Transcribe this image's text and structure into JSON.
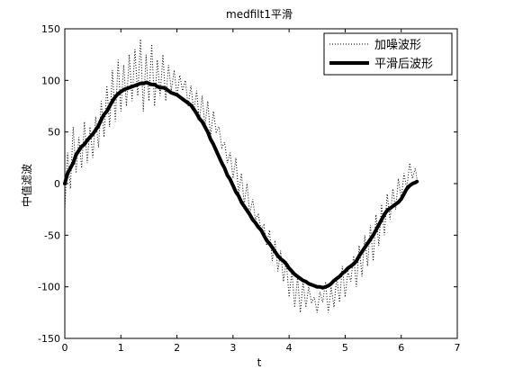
{
  "chart_data": {
    "type": "line",
    "title": "medfilt1平滑",
    "xlabel": "t",
    "ylabel": "中值滤波",
    "xlim": [
      0,
      7
    ],
    "ylim": [
      -150,
      150
    ],
    "xticks": [
      "0",
      "1",
      "2",
      "3",
      "4",
      "5",
      "6",
      "7"
    ],
    "yticks": [
      "150",
      "100",
      "50",
      "0",
      "-50",
      "-100",
      "-150"
    ],
    "grid": false,
    "legend_position": "top-right",
    "series": [
      {
        "name": "加噪波形",
        "style": "dotted",
        "color": "#000000",
        "x": [
          0,
          0.05,
          0.1,
          0.15,
          0.2,
          0.25,
          0.3,
          0.35,
          0.4,
          0.45,
          0.5,
          0.55,
          0.6,
          0.65,
          0.7,
          0.75,
          0.8,
          0.85,
          0.9,
          0.95,
          1.0,
          1.05,
          1.1,
          1.15,
          1.2,
          1.25,
          1.3,
          1.35,
          1.4,
          1.45,
          1.5,
          1.55,
          1.6,
          1.65,
          1.7,
          1.75,
          1.8,
          1.85,
          1.9,
          1.95,
          2.0,
          2.05,
          2.1,
          2.15,
          2.2,
          2.25,
          2.3,
          2.35,
          2.4,
          2.45,
          2.5,
          2.55,
          2.6,
          2.65,
          2.7,
          2.75,
          2.8,
          2.85,
          2.9,
          2.95,
          3.0,
          3.05,
          3.1,
          3.15,
          3.2,
          3.25,
          3.3,
          3.35,
          3.4,
          3.45,
          3.5,
          3.55,
          3.6,
          3.65,
          3.7,
          3.75,
          3.8,
          3.85,
          3.9,
          3.95,
          4.0,
          4.05,
          4.1,
          4.15,
          4.2,
          4.25,
          4.3,
          4.35,
          4.4,
          4.45,
          4.5,
          4.55,
          4.6,
          4.65,
          4.7,
          4.75,
          4.8,
          4.85,
          4.9,
          4.95,
          5.0,
          5.05,
          5.1,
          5.15,
          5.2,
          5.25,
          5.3,
          5.35,
          5.4,
          5.45,
          5.5,
          5.55,
          5.6,
          5.65,
          5.7,
          5.75,
          5.8,
          5.85,
          5.9,
          5.95,
          6.0,
          6.05,
          6.1,
          6.15,
          6.2,
          6.25,
          6.28
        ],
        "values": [
          -25,
          30,
          -5,
          55,
          10,
          45,
          15,
          60,
          20,
          55,
          25,
          65,
          35,
          80,
          45,
          95,
          55,
          110,
          60,
          120,
          70,
          115,
          75,
          125,
          80,
          130,
          85,
          140,
          70,
          125,
          80,
          135,
          75,
          120,
          85,
          125,
          80,
          115,
          90,
          110,
          85,
          105,
          90,
          100,
          75,
          95,
          70,
          90,
          60,
          85,
          55,
          80,
          45,
          70,
          50,
          55,
          35,
          40,
          20,
          30,
          5,
          25,
          -10,
          10,
          -20,
          0,
          -30,
          -15,
          -35,
          -30,
          -45,
          -40,
          -60,
          -45,
          -75,
          -55,
          -85,
          -65,
          -95,
          -75,
          -110,
          -85,
          -120,
          -90,
          -125,
          -95,
          -120,
          -100,
          -115,
          -110,
          -125,
          -105,
          -115,
          -95,
          -125,
          -100,
          -120,
          -90,
          -115,
          -80,
          -110,
          -85,
          -95,
          -70,
          -100,
          -60,
          -90,
          -50,
          -80,
          -40,
          -75,
          -30,
          -60,
          -20,
          -50,
          -10,
          -35,
          -5,
          -25,
          5,
          -15,
          10,
          -5,
          20,
          5,
          15,
          5
        ]
      },
      {
        "name": "平滑后波形",
        "style": "solid-thick",
        "color": "#000000",
        "x": [
          0,
          0.05,
          0.1,
          0.15,
          0.2,
          0.25,
          0.3,
          0.35,
          0.4,
          0.45,
          0.5,
          0.55,
          0.6,
          0.65,
          0.7,
          0.75,
          0.8,
          0.85,
          0.9,
          0.95,
          1.0,
          1.05,
          1.1,
          1.15,
          1.2,
          1.25,
          1.3,
          1.35,
          1.4,
          1.45,
          1.5,
          1.55,
          1.6,
          1.65,
          1.7,
          1.75,
          1.8,
          1.85,
          1.9,
          1.95,
          2.0,
          2.05,
          2.1,
          2.15,
          2.2,
          2.25,
          2.3,
          2.35,
          2.4,
          2.45,
          2.5,
          2.55,
          2.6,
          2.65,
          2.7,
          2.75,
          2.8,
          2.85,
          2.9,
          2.95,
          3.0,
          3.05,
          3.1,
          3.15,
          3.2,
          3.25,
          3.3,
          3.35,
          3.4,
          3.45,
          3.5,
          3.55,
          3.6,
          3.65,
          3.7,
          3.75,
          3.8,
          3.85,
          3.9,
          3.95,
          4.0,
          4.05,
          4.1,
          4.15,
          4.2,
          4.25,
          4.3,
          4.35,
          4.4,
          4.45,
          4.5,
          4.55,
          4.6,
          4.65,
          4.7,
          4.75,
          4.8,
          4.85,
          4.9,
          4.95,
          5.0,
          5.05,
          5.1,
          5.15,
          5.2,
          5.25,
          5.3,
          5.35,
          5.4,
          5.45,
          5.5,
          5.55,
          5.6,
          5.65,
          5.7,
          5.75,
          5.8,
          5.85,
          5.9,
          5.95,
          6.0,
          6.05,
          6.1,
          6.15,
          6.2,
          6.25,
          6.28
        ],
        "values": [
          0,
          10,
          15,
          20,
          28,
          32,
          36,
          38,
          42,
          45,
          48,
          52,
          56,
          62,
          67,
          70,
          75,
          80,
          84,
          87,
          89,
          91,
          92,
          93,
          94,
          95,
          96,
          97,
          97,
          98,
          97,
          96,
          96,
          94,
          93,
          93,
          92,
          90,
          88,
          87,
          86,
          84,
          82,
          80,
          78,
          76,
          72,
          68,
          63,
          60,
          55,
          50,
          43,
          38,
          32,
          26,
          20,
          15,
          8,
          4,
          -2,
          -8,
          -12,
          -18,
          -22,
          -26,
          -30,
          -35,
          -38,
          -42,
          -45,
          -50,
          -55,
          -58,
          -62,
          -66,
          -70,
          -73,
          -75,
          -78,
          -82,
          -85,
          -88,
          -90,
          -92,
          -94,
          -95,
          -97,
          -98,
          -99,
          -100,
          -100,
          -101,
          -100,
          -99,
          -97,
          -94,
          -92,
          -90,
          -87,
          -85,
          -82,
          -80,
          -78,
          -75,
          -70,
          -66,
          -62,
          -58,
          -54,
          -50,
          -45,
          -40,
          -35,
          -30,
          -26,
          -24,
          -22,
          -20,
          -18,
          -15,
          -10,
          -5,
          -2,
          0,
          1,
          2
        ]
      }
    ]
  }
}
